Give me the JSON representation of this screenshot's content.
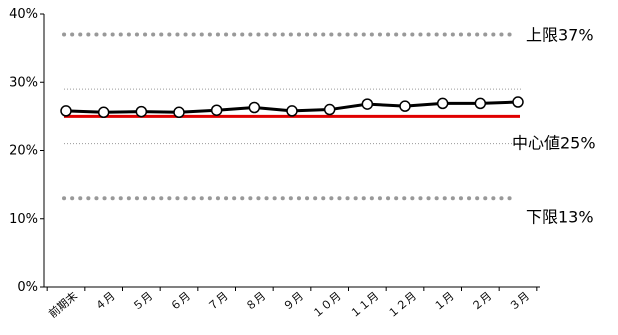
{
  "chart_data": {
    "type": "line",
    "categories": [
      "前期末",
      "４月",
      "５月",
      "６月",
      "７月",
      "８月",
      "９月",
      "１０月",
      "１１月",
      "１２月",
      "１月",
      "２月",
      "３月"
    ],
    "series": [
      {
        "values": [
          25.8,
          25.6,
          25.7,
          25.6,
          25.9,
          26.3,
          25.8,
          26.0,
          26.8,
          26.5,
          26.9,
          26.9,
          27.1
        ],
        "color": "#000000",
        "marker": "circle"
      }
    ],
    "ylim": [
      0,
      40
    ],
    "yticks": [
      0,
      10,
      20,
      30,
      40
    ],
    "ytick_labels": [
      "0%",
      "10%",
      "20%",
      "30%",
      "40%"
    ],
    "reference_lines": [
      {
        "value": 37,
        "label": "上限37%",
        "style": "dotted-heavy",
        "color": "#999999"
      },
      {
        "value": 29,
        "label": "",
        "style": "dotted-thin",
        "color": "#999999"
      },
      {
        "value": 25,
        "label": "中心値25%",
        "style": "solid",
        "color": "#e00000"
      },
      {
        "value": 21,
        "label": "",
        "style": "dotted-thin",
        "color": "#999999"
      },
      {
        "value": 13,
        "label": "下限13%",
        "style": "dotted-heavy",
        "color": "#999999"
      }
    ],
    "grid": false,
    "legend": "none"
  }
}
